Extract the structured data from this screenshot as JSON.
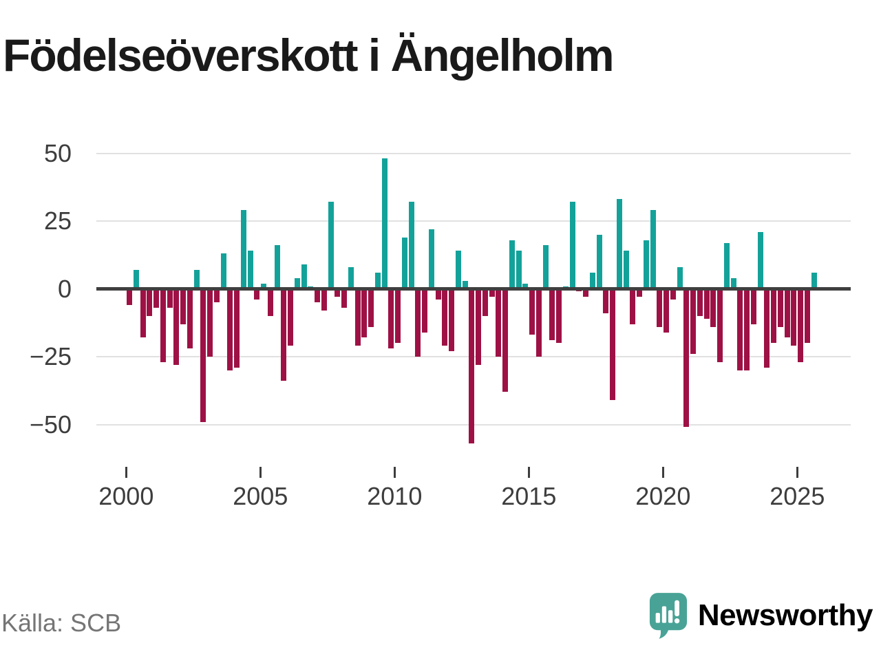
{
  "title": "Födelseöverskott i Ängelholm",
  "source": {
    "label": "Källa: SCB"
  },
  "branding": {
    "name": "Newsworthy",
    "icon": "speech-bubble-bar-chart-icon"
  },
  "colors": {
    "positive": "#13a29a",
    "negative": "#9e1145",
    "brand": "#48a396",
    "grid": "#e1e1e1",
    "zero_line": "#3f3f3f",
    "axis_text": "#3d3d3d",
    "title_text": "#1a1a1a",
    "source_text": "#757575"
  },
  "chart_data": {
    "type": "bar",
    "title": "Födelseöverskott i Ängelholm",
    "series_name": "Födelseöverskott",
    "frequency": "quarterly",
    "start": {
      "year": 2000,
      "quarter": 1
    },
    "end": {
      "year": 2025,
      "quarter": 3
    },
    "values": [
      -6,
      7,
      -18,
      -10,
      -7,
      -27,
      -7,
      -28,
      -13,
      -22,
      7,
      -49,
      -25,
      -5,
      13,
      -30,
      -29,
      29,
      14,
      -4,
      2,
      -10,
      16,
      -34,
      -21,
      4,
      9,
      1,
      -5,
      -8,
      32,
      -3,
      -7,
      8,
      -21,
      -18,
      -14,
      6,
      48,
      -22,
      -20,
      19,
      32,
      -25,
      -16,
      22,
      -4,
      -21,
      -23,
      14,
      3,
      -57,
      -28,
      -10,
      -3,
      -25,
      -38,
      18,
      14,
      2,
      -17,
      -25,
      16,
      -19,
      -20,
      1,
      32,
      -1,
      -3,
      6,
      20,
      -9,
      -41,
      33,
      14,
      -13,
      -3,
      18,
      29,
      -14,
      -16,
      -4,
      8,
      -51,
      -24,
      -10,
      -11,
      -14,
      -27,
      17,
      4,
      -30,
      -30,
      -13,
      21,
      -29,
      -20,
      -14,
      -18,
      -21,
      -27,
      -20,
      6
    ],
    "yticks": [
      50,
      25,
      0,
      -25,
      -50
    ],
    "xticks": [
      2000,
      2005,
      2010,
      2015,
      2020,
      2025
    ],
    "ylim": [
      -62,
      55
    ],
    "grid": true,
    "legend": false
  }
}
